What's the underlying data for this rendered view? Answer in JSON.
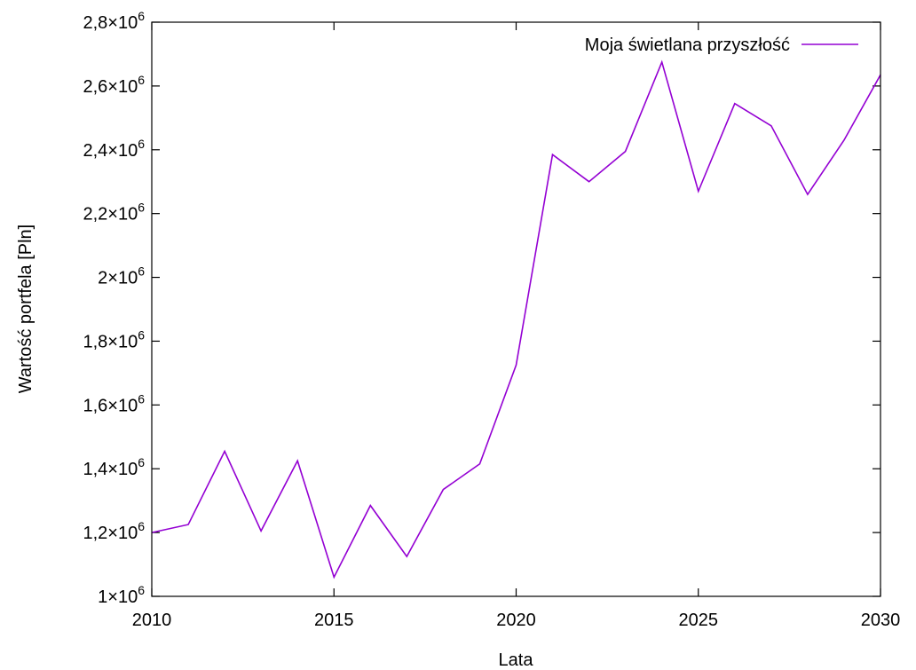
{
  "chart_data": {
    "type": "line",
    "title": "",
    "xlabel": "Lata",
    "ylabel": "Wartość portfela [Pln]",
    "xlim": [
      2010,
      2030
    ],
    "ylim": [
      1000000,
      2800000
    ],
    "grid": false,
    "legend_position": "top-right",
    "x_ticks": [
      "2010",
      "2015",
      "2020",
      "2025",
      "2030"
    ],
    "y_ticks": [
      {
        "mant": "1",
        "exp": "6"
      },
      {
        "mant": "1,2",
        "exp": "6"
      },
      {
        "mant": "1,4",
        "exp": "6"
      },
      {
        "mant": "1,6",
        "exp": "6"
      },
      {
        "mant": "1,8",
        "exp": "6"
      },
      {
        "mant": "2",
        "exp": "6"
      },
      {
        "mant": "2,2",
        "exp": "6"
      },
      {
        "mant": "2,4",
        "exp": "6"
      },
      {
        "mant": "2,6",
        "exp": "6"
      },
      {
        "mant": "2,8",
        "exp": "6"
      }
    ],
    "x": [
      2010,
      2011,
      2012,
      2013,
      2014,
      2015,
      2016,
      2017,
      2018,
      2019,
      2020,
      2021,
      2022,
      2023,
      2024,
      2025,
      2026,
      2027,
      2028,
      2029,
      2030
    ],
    "series": [
      {
        "name": "Moja świetlana przyszłość",
        "color": "#9400D3",
        "values": [
          1200000,
          1225000,
          1455000,
          1205000,
          1425000,
          1060000,
          1285000,
          1125000,
          1335000,
          1415000,
          1725000,
          2385000,
          2300000,
          2395000,
          2675000,
          2270000,
          2545000,
          2475000,
          2260000,
          2430000,
          2635000
        ]
      }
    ]
  }
}
